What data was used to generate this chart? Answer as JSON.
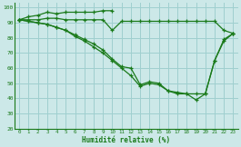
{
  "xlabel": "Humidité relative (%)",
  "background_color": "#cce8e8",
  "grid_color": "#9fcfcf",
  "line_color": "#1a7a1a",
  "xlim": [
    -0.5,
    23.5
  ],
  "ylim": [
    20,
    103
  ],
  "yticks": [
    20,
    30,
    40,
    50,
    60,
    70,
    80,
    90,
    100
  ],
  "xticks": [
    0,
    1,
    2,
    3,
    4,
    5,
    6,
    7,
    8,
    9,
    10,
    11,
    12,
    13,
    14,
    15,
    16,
    17,
    18,
    19,
    20,
    21,
    22,
    23
  ],
  "series": [
    [
      92,
      94,
      95,
      97,
      96,
      97,
      97,
      97,
      97,
      98,
      98,
      null,
      null,
      null,
      null,
      null,
      null,
      null,
      null,
      null,
      null,
      null,
      null,
      null
    ],
    [
      92,
      92,
      92,
      93,
      93,
      92,
      92,
      92,
      92,
      92,
      85,
      91,
      91,
      91,
      91,
      91,
      91,
      91,
      91,
      91,
      91,
      91,
      85,
      83
    ],
    [
      92,
      91,
      90,
      89,
      87,
      85,
      82,
      79,
      76,
      72,
      66,
      61,
      60,
      49,
      51,
      50,
      45,
      44,
      43,
      43,
      43,
      65,
      78,
      83
    ],
    [
      92,
      91,
      90,
      89,
      87,
      85,
      81,
      78,
      74,
      70,
      65,
      60,
      55,
      48,
      50,
      49,
      45,
      43,
      43,
      39,
      43,
      65,
      79,
      83
    ]
  ]
}
